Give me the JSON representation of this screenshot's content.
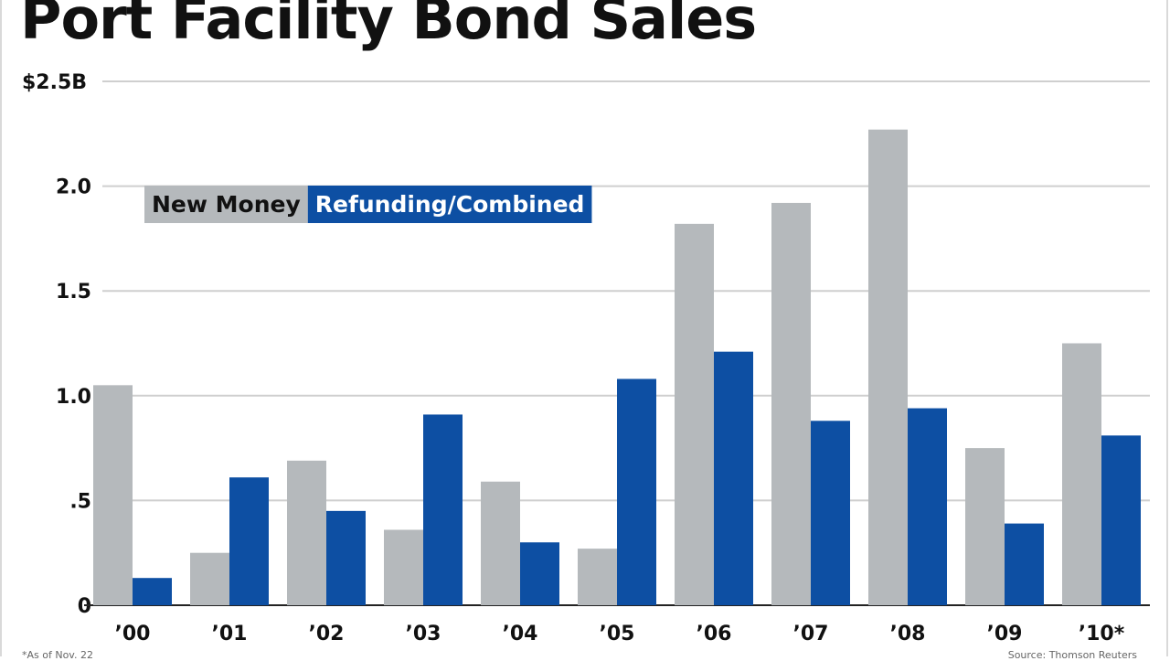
{
  "chart_data": {
    "type": "bar",
    "title": "Port Facility Bond Sales",
    "ylabel": "",
    "xlabel": "",
    "ylim": [
      0,
      2.5
    ],
    "yticks": [
      {
        "value": 0,
        "label": "0"
      },
      {
        "value": 0.5,
        "label": ".5"
      },
      {
        "value": 1.0,
        "label": "1.0"
      },
      {
        "value": 1.5,
        "label": "1.5"
      },
      {
        "value": 2.0,
        "label": "2.0"
      },
      {
        "value": 2.5,
        "label": "$2.5B"
      }
    ],
    "categories": [
      "’00",
      "’01",
      "’02",
      "’03",
      "’04",
      "’05",
      "’06",
      "’07",
      "’08",
      "’09",
      "’10*"
    ],
    "series": [
      {
        "name": "New Money",
        "color": "#b5b9bc",
        "text_color": "#111111",
        "values": [
          1.05,
          0.25,
          0.69,
          0.36,
          0.59,
          0.27,
          1.82,
          1.92,
          2.27,
          0.75,
          1.25
        ]
      },
      {
        "name": "Refunding/Combined",
        "color": "#0d4fa3",
        "text_color": "#ffffff",
        "values": [
          0.13,
          0.61,
          0.45,
          0.91,
          0.3,
          1.08,
          1.21,
          0.88,
          0.94,
          0.39,
          0.81
        ]
      }
    ],
    "grid": true,
    "legend_position": "top-left"
  },
  "footnote": "*As of Nov. 22",
  "source": "Source: Thomson Reuters"
}
